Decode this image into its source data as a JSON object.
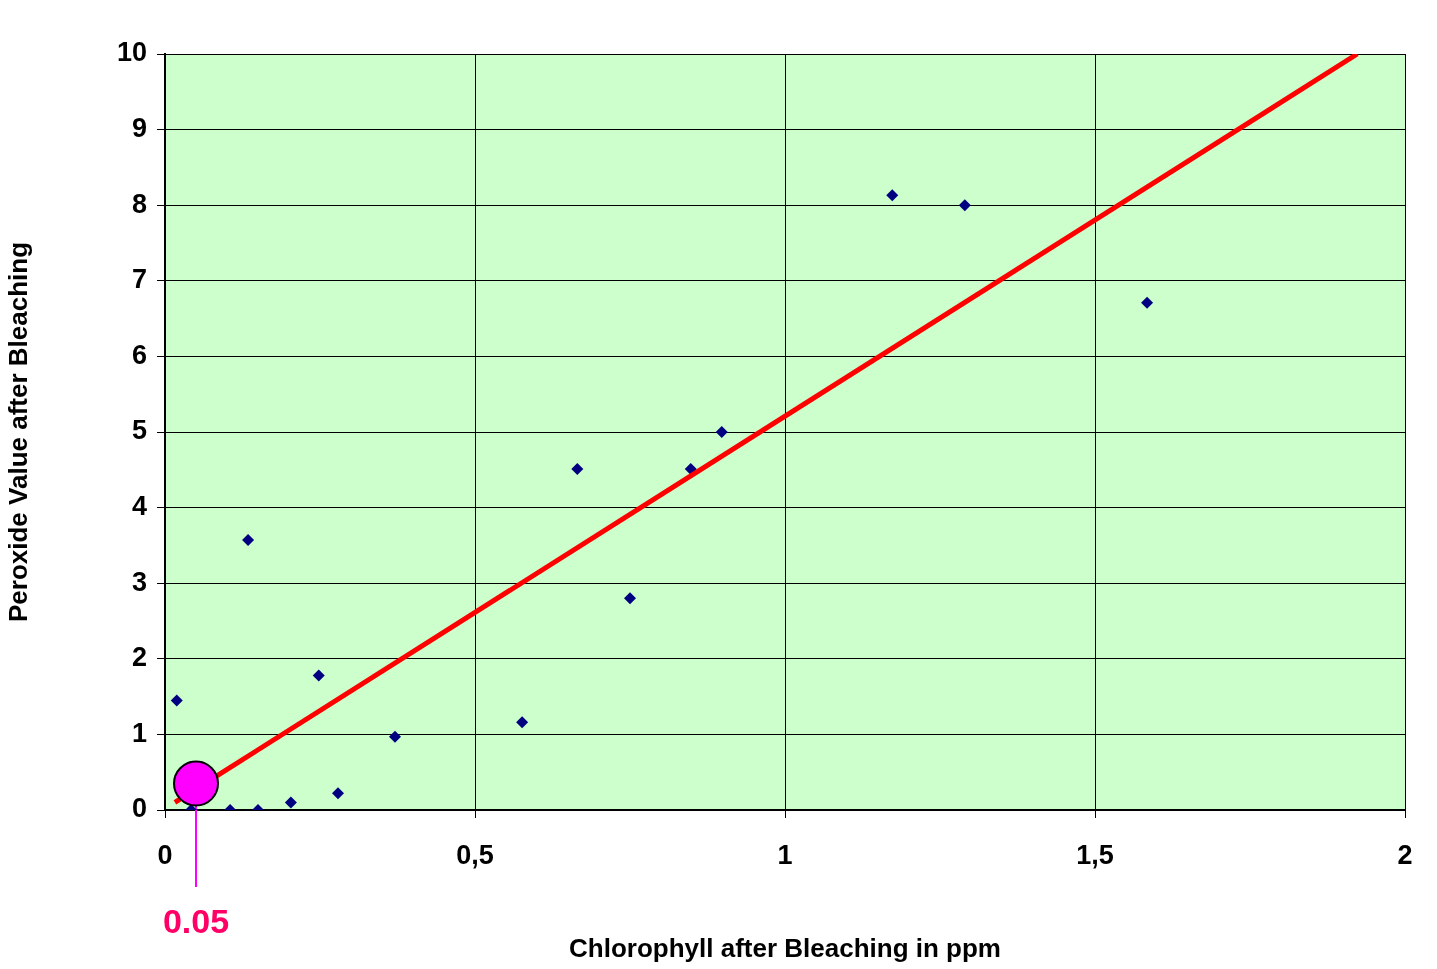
{
  "chart_data": {
    "type": "scatter",
    "xlabel": "Chlorophyll after Bleaching in ppm",
    "ylabel": "Peroxide Value after Bleaching",
    "xlim": [
      0,
      2
    ],
    "xticks": [
      {
        "value": 0,
        "label": "0"
      },
      {
        "value": 0.5,
        "label": "0,5"
      },
      {
        "value": 1,
        "label": "1"
      },
      {
        "value": 1.5,
        "label": "1,5"
      },
      {
        "value": 2,
        "label": "2"
      }
    ],
    "ylim": [
      0,
      10
    ],
    "yticks": [
      0,
      1,
      2,
      3,
      4,
      5,
      6,
      7,
      8,
      9,
      10
    ],
    "grid": true,
    "legend": false,
    "series": [
      {
        "type": "scatter",
        "marker": "diamond",
        "color": "#000080",
        "x": [
          0.019,
          0.042,
          0.105,
          0.134,
          0.15,
          0.203,
          0.248,
          0.279,
          0.371,
          0.576,
          0.665,
          0.75,
          0.848,
          0.898,
          1.173,
          1.29,
          1.584
        ],
        "values": [
          1.45,
          0,
          0,
          3.57,
          0,
          0.1,
          1.78,
          0.22,
          0.97,
          1.16,
          4.51,
          2.8,
          4.51,
          5.0,
          8.13,
          8.0,
          6.71
        ]
      },
      {
        "type": "line",
        "marker": "none",
        "color": "#ff0000",
        "x": [
          0.016,
          1.923
        ],
        "values": [
          0.1,
          10
        ]
      },
      {
        "type": "scatter",
        "marker": "circle",
        "color": "#ff00ff",
        "x": [
          0.05
        ],
        "values": [
          0.35
        ]
      }
    ],
    "annotations": [
      {
        "text": "0.05",
        "x": 0.05,
        "y": 0.35
      }
    ]
  }
}
